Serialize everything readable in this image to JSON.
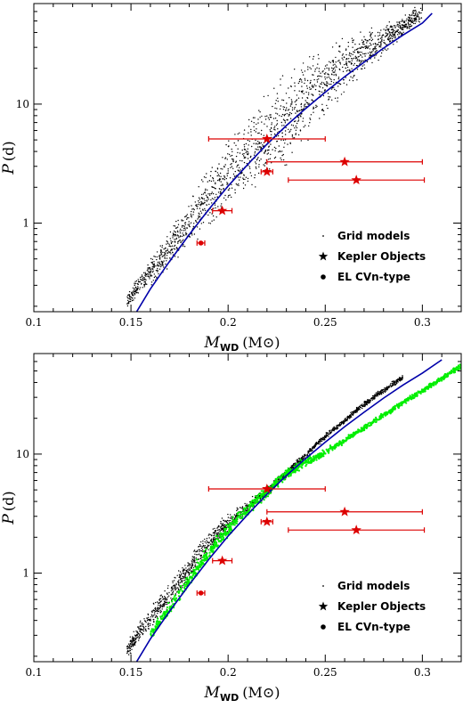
{
  "chart_data": [
    {
      "type": "scatter",
      "panel": "top",
      "xlabel": "M_WD (M⊙)",
      "ylabel": "P (d)",
      "xlim": [
        0.1,
        0.32
      ],
      "ylim": [
        0.18,
        70
      ],
      "yscale": "log",
      "x_ticks": [
        "0.1",
        "0.15",
        "0.2",
        "0.25",
        "0.3"
      ],
      "y_ticks": [
        "1",
        "10"
      ],
      "legend": {
        "placement": "bottom-right",
        "entries": [
          "Grid models",
          "Kepler Objects",
          "EL CVn-type"
        ]
      },
      "series": [
        {
          "name": "Grid models",
          "color": "#000000",
          "marker": "dot",
          "band": {
            "x": [
              0.148,
              0.16,
              0.17,
              0.18,
              0.19,
              0.2,
              0.21,
              0.22,
              0.23,
              0.24,
              0.25,
              0.26,
              0.27,
              0.28,
              0.29,
              0.3
            ],
            "y_center": [
              0.22,
              0.38,
              0.6,
              0.95,
              1.6,
              2.5,
              3.6,
              5.0,
              7.5,
              11,
              15,
              21,
              28,
              35,
              45,
              58
            ],
            "y_spread": [
              0.08,
              0.15,
              0.2,
              0.25,
              0.32,
              0.38,
              0.42,
              0.45,
              0.45,
              0.42,
              0.38,
              0.3,
              0.22,
              0.16,
              0.12,
              0.1
            ]
          }
        },
        {
          "name": "Kepler Objects",
          "color": "#dd0000",
          "marker": "star",
          "points": [
            {
              "x": 0.22,
              "y": 5.1,
              "xerr": 0.03
            },
            {
              "x": 0.26,
              "y": 3.27,
              "xerr": 0.04
            },
            {
              "x": 0.22,
              "y": 2.7,
              "xerr": 0.003
            },
            {
              "x": 0.266,
              "y": 2.3,
              "xerr": 0.035
            },
            {
              "x": 0.197,
              "y": 1.27,
              "xerr": 0.005
            }
          ]
        },
        {
          "name": "EL CVn-type",
          "color": "#dd0000",
          "marker": "circle",
          "points": [
            {
              "x": 0.186,
              "y": 0.68,
              "xerr": 0.002
            }
          ]
        },
        {
          "name": "",
          "color": "#0000aa",
          "marker": "line",
          "x": [
            0.152,
            0.16,
            0.17,
            0.18,
            0.19,
            0.2,
            0.21,
            0.22,
            0.23,
            0.24,
            0.25,
            0.26,
            0.27,
            0.28,
            0.29,
            0.3,
            0.305
          ],
          "y": [
            0.17,
            0.28,
            0.48,
            0.8,
            1.3,
            2.05,
            3.1,
            4.6,
            6.6,
            9.2,
            12.6,
            17,
            22.5,
            29.5,
            38,
            48,
            58
          ]
        }
      ]
    },
    {
      "type": "scatter",
      "panel": "bottom",
      "xlabel": "M_WD (M⊙)",
      "ylabel": "P (d)",
      "xlim": [
        0.1,
        0.32
      ],
      "ylim": [
        0.18,
        70
      ],
      "yscale": "log",
      "x_ticks": [
        "0.1",
        "0.15",
        "0.2",
        "0.25",
        "0.3"
      ],
      "y_ticks": [
        "1",
        "10"
      ],
      "legend": {
        "placement": "bottom-right",
        "entries": [
          "Grid models",
          "Kepler Objects",
          "EL CVn-type"
        ]
      },
      "series": [
        {
          "name": "Grid models",
          "color": "#000000",
          "marker": "dot",
          "band": {
            "x": [
              0.148,
              0.16,
              0.17,
              0.18,
              0.19,
              0.2,
              0.21,
              0.22,
              0.23,
              0.24,
              0.25,
              0.26,
              0.27,
              0.28,
              0.29
            ],
            "y_center": [
              0.22,
              0.4,
              0.65,
              1.05,
              1.75,
              2.6,
              3.6,
              4.8,
              6.8,
              9.8,
              14,
              19,
              26,
              34,
              44
            ],
            "y_spread": [
              0.08,
              0.12,
              0.14,
              0.14,
              0.12,
              0.1,
              0.07,
              0.05,
              0.04,
              0.03,
              0.03,
              0.03,
              0.03,
              0.03,
              0.03
            ]
          }
        },
        {
          "name": "",
          "color": "#00ee00",
          "marker": "dot",
          "band": {
            "x": [
              0.16,
              0.17,
              0.18,
              0.19,
              0.2,
              0.21,
              0.22,
              0.23,
              0.24,
              0.25,
              0.26,
              0.27,
              0.28,
              0.29,
              0.3,
              0.31,
              0.32
            ],
            "y_center": [
              0.3,
              0.5,
              0.85,
              1.45,
              2.3,
              3.4,
              4.8,
              6.8,
              8.5,
              10.3,
              13,
              16.5,
              21,
              27,
              34,
              43,
              55
            ],
            "y_spread": [
              0.06,
              0.07,
              0.08,
              0.08,
              0.08,
              0.07,
              0.06,
              0.05,
              0.05,
              0.04,
              0.03,
              0.03,
              0.03,
              0.03,
              0.03,
              0.03,
              0.03
            ]
          }
        },
        {
          "name": "Kepler Objects",
          "color": "#dd0000",
          "marker": "star",
          "points": [
            {
              "x": 0.22,
              "y": 5.1,
              "xerr": 0.03
            },
            {
              "x": 0.26,
              "y": 3.27,
              "xerr": 0.04
            },
            {
              "x": 0.22,
              "y": 2.7,
              "xerr": 0.003
            },
            {
              "x": 0.266,
              "y": 2.3,
              "xerr": 0.035
            },
            {
              "x": 0.197,
              "y": 1.27,
              "xerr": 0.005
            }
          ]
        },
        {
          "name": "EL CVn-type",
          "color": "#dd0000",
          "marker": "circle",
          "points": [
            {
              "x": 0.186,
              "y": 0.68,
              "xerr": 0.002
            }
          ]
        },
        {
          "name": "",
          "color": "#0000aa",
          "marker": "line",
          "x": [
            0.152,
            0.16,
            0.17,
            0.18,
            0.19,
            0.2,
            0.21,
            0.22,
            0.23,
            0.24,
            0.25,
            0.26,
            0.27,
            0.28,
            0.29,
            0.3,
            0.31
          ],
          "y": [
            0.17,
            0.28,
            0.48,
            0.8,
            1.3,
            2.05,
            3.1,
            4.6,
            6.6,
            9.2,
            12.6,
            17,
            22.5,
            29.5,
            38,
            48,
            62
          ]
        }
      ]
    }
  ]
}
